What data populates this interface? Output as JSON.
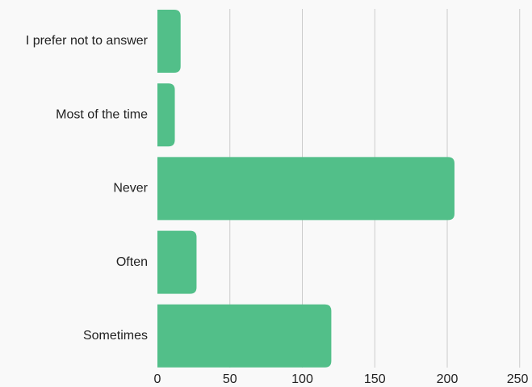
{
  "chart_data": {
    "type": "bar",
    "orientation": "horizontal",
    "categories": [
      "I prefer not to answer",
      "Most of the time",
      "Never",
      "Often",
      "Sometimes"
    ],
    "values": [
      16,
      12,
      205,
      27,
      120
    ],
    "xlim": [
      0,
      250
    ],
    "xticks": [
      0,
      50,
      100,
      150,
      200,
      250
    ],
    "xtick_labels": [
      "0",
      "50",
      "100",
      "150",
      "200",
      "250"
    ],
    "title": "",
    "xlabel": "",
    "ylabel": "",
    "grid": "vertical",
    "legend": "none",
    "colors": {
      "bar": "#52bf89",
      "grid": "#cccccc",
      "background": "#f9f9f9",
      "text": "#222222"
    }
  }
}
